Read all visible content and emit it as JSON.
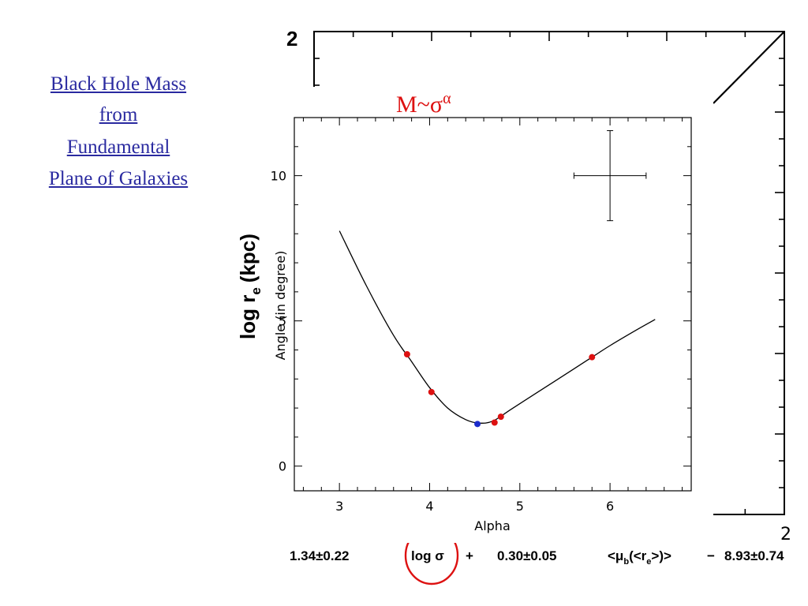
{
  "link": {
    "lines": [
      "Black Hole Mass",
      "from",
      "Fundamental",
      "Plane of Galaxies"
    ]
  },
  "background_plot": {
    "ylabel": "log r",
    "ylabel_sub": "e",
    "ylabel_unit": "(kpc)",
    "corner_top_left": "2",
    "corner_bottom_right": "2",
    "equation": {
      "term1": "1.34±0.22",
      "term2": "log σ",
      "plus": "+",
      "term3": "0.30±0.05",
      "term4_pre": "<μ",
      "term4_sub": "b",
      "term4_mid": "(<r",
      "term4_sub2": "e",
      "term4_post": ">)>",
      "minus": "−",
      "term5": "8.93±0.74"
    },
    "highlight_color": "#dd1111"
  },
  "overlay_title": {
    "base": "M~σ",
    "sup": "α"
  },
  "chart_data": {
    "type": "scatter",
    "title": "",
    "xlabel": "Alpha",
    "ylabel": "Angle (in degree)",
    "xlim": [
      2.5,
      6.9
    ],
    "ylim": [
      -0.85,
      12.0
    ],
    "xticks": [
      3,
      4,
      5,
      6
    ],
    "yticks": [
      0,
      5,
      10
    ],
    "curve": {
      "x": [
        3.0,
        3.3,
        3.6,
        3.8,
        4.0,
        4.2,
        4.4,
        4.55,
        4.7,
        4.9,
        5.2,
        5.6,
        5.8,
        6.0,
        6.3,
        6.5
      ],
      "y": [
        8.1,
        6.2,
        4.5,
        3.6,
        2.7,
        2.0,
        1.6,
        1.48,
        1.55,
        1.95,
        2.55,
        3.35,
        3.75,
        4.15,
        4.7,
        5.05
      ]
    },
    "points": [
      {
        "x": 3.75,
        "y": 3.85,
        "color": "#dd1111"
      },
      {
        "x": 4.02,
        "y": 2.55,
        "color": "#dd1111"
      },
      {
        "x": 4.53,
        "y": 1.45,
        "color": "#1c2ccc"
      },
      {
        "x": 4.72,
        "y": 1.5,
        "color": "#dd1111"
      },
      {
        "x": 4.79,
        "y": 1.7,
        "color": "#dd1111"
      },
      {
        "x": 5.8,
        "y": 3.75,
        "color": "#dd1111"
      }
    ],
    "error_cross": {
      "x": 6.0,
      "y": 10.0,
      "xerr": 0.4,
      "yerr": 1.55
    },
    "grid": false,
    "legend": "none"
  }
}
